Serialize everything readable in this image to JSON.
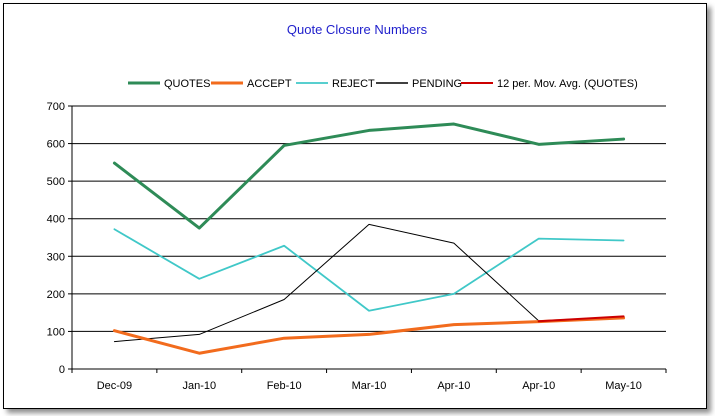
{
  "chart_data": {
    "type": "line",
    "title": "Quote Closure Numbers",
    "xlabel": "",
    "ylabel": "",
    "categories": [
      "Dec-09",
      "Jan-10",
      "Feb-10",
      "Mar-10",
      "Apr-10",
      "Apr-10",
      "May-10"
    ],
    "ylim": [
      0,
      700
    ],
    "yticks": [
      0,
      100,
      200,
      300,
      400,
      500,
      600,
      700
    ],
    "grid": true,
    "legend_position": "top",
    "series": [
      {
        "name": "QUOTES",
        "color": "#2e8b57",
        "width": 3,
        "values": [
          548,
          375,
          595,
          635,
          652,
          598,
          612
        ]
      },
      {
        "name": "ACCEPT",
        "color": "#f26b1d",
        "width": 3,
        "values": [
          102,
          42,
          82,
          92,
          118,
          126,
          136
        ]
      },
      {
        "name": "REJECT",
        "color": "#40c8c8",
        "width": 1.8,
        "values": [
          372,
          240,
          328,
          155,
          200,
          347,
          342
        ]
      },
      {
        "name": "PENDING",
        "color": "#000000",
        "width": 1,
        "values": [
          73,
          92,
          185,
          385,
          335,
          128,
          138
        ]
      },
      {
        "name": "12 per. Mov. Avg. (QUOTES)",
        "color": "#cc0000",
        "width": 2,
        "values": [
          null,
          null,
          null,
          null,
          null,
          127,
          140
        ]
      }
    ]
  }
}
